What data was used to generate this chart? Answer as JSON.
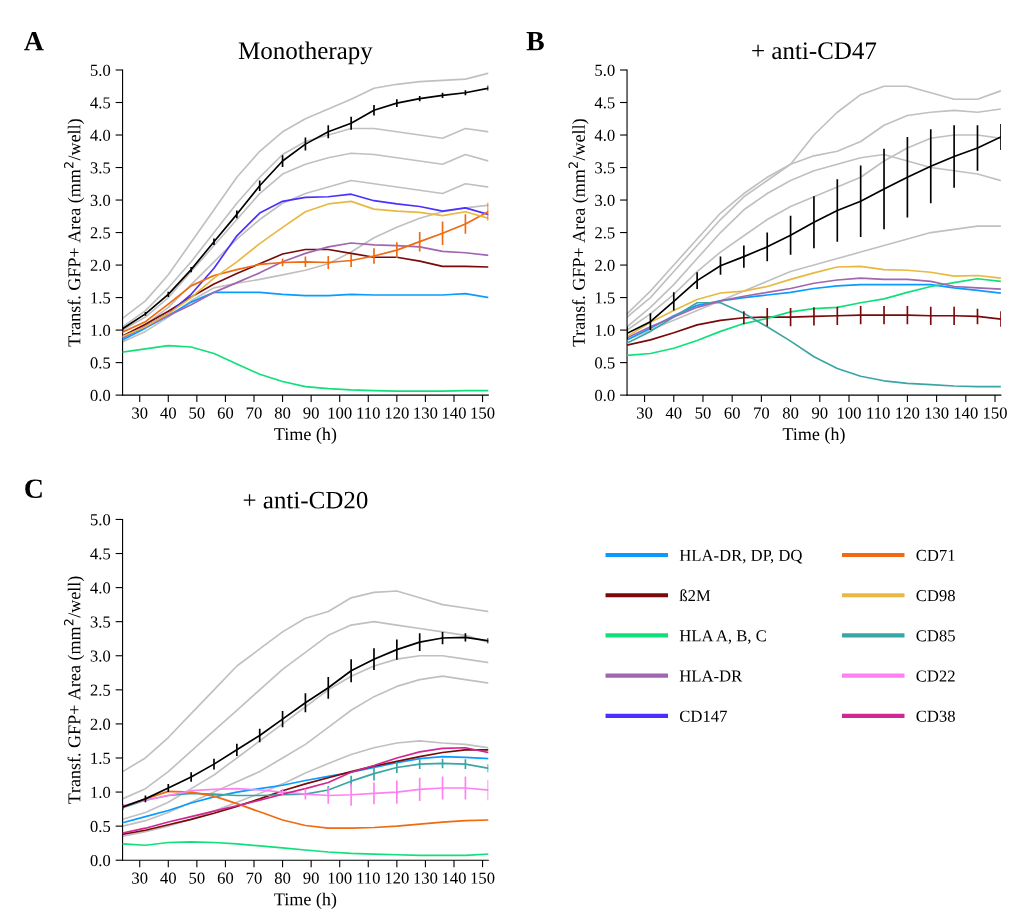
{
  "chart_data": [
    {
      "type": "line",
      "title": "Monotherapy",
      "xlabel": "Time (h)",
      "ylabel": "Transf. GFP+ Area (mm$^{2}$/well)",
      "annotations": [
        "A"
      ],
      "legend": "bottom right",
      "x": [
        24,
        32,
        40,
        48,
        56,
        64,
        72,
        80,
        88,
        96,
        104,
        112,
        120,
        128,
        136,
        144,
        152
      ],
      "xlim": [
        24,
        152
      ],
      "xticks": [
        30,
        40,
        50,
        60,
        70,
        80,
        90,
        100,
        110,
        120,
        130,
        140,
        150
      ],
      "ylim": [
        0,
        5
      ],
      "yticks": [
        {
          "value": 0,
          "label": "0.0"
        },
        {
          "value": 0.5,
          "label": "0.5"
        },
        {
          "value": 1,
          "label": "1.0"
        },
        {
          "value": 1.5,
          "label": "1.5"
        },
        {
          "value": 2,
          "label": "2.0"
        },
        {
          "value": 2.5,
          "label": "2.5"
        },
        {
          "value": 3,
          "label": "3.0"
        },
        {
          "value": 3.5,
          "label": "3.5"
        },
        {
          "value": 4,
          "label": "4.0"
        },
        {
          "value": 4.5,
          "label": "4.5"
        },
        {
          "value": 5,
          "label": "5.0"
        }
      ],
      "series": [
        {
          "color": "#c0c0c0",
          "values": [
            1.18,
            1.45,
            1.85,
            2.35,
            2.85,
            3.35,
            3.75,
            4.05,
            4.25,
            4.4,
            4.55,
            4.72,
            4.78,
            4.82,
            4.84,
            4.86,
            4.95
          ]
        },
        {
          "color": "#c0c0c0",
          "values": [
            1.05,
            1.3,
            1.65,
            2.05,
            2.5,
            2.95,
            3.35,
            3.7,
            3.9,
            4.0,
            4.1,
            4.1,
            4.05,
            4.0,
            3.95,
            4.1,
            4.05
          ]
        },
        {
          "color": "#c0c0c0",
          "values": [
            1.0,
            1.2,
            1.5,
            1.9,
            2.3,
            2.7,
            3.1,
            3.4,
            3.55,
            3.65,
            3.72,
            3.7,
            3.65,
            3.6,
            3.55,
            3.7,
            3.6
          ]
        },
        {
          "color": "#c0c0c0",
          "values": [
            0.9,
            1.08,
            1.35,
            1.7,
            2.05,
            2.4,
            2.7,
            2.95,
            3.1,
            3.2,
            3.3,
            3.25,
            3.2,
            3.15,
            3.1,
            3.25,
            3.2
          ]
        },
        {
          "color": "#c0c0c0",
          "values": [
            0.82,
            0.98,
            1.2,
            1.45,
            1.65,
            1.72,
            1.78,
            1.85,
            1.92,
            2.02,
            2.2,
            2.42,
            2.58,
            2.72,
            2.82,
            2.88,
            2.92
          ]
        },
        {
          "name": "HLA-DR, DP, DQ",
          "color": "#0a9bff",
          "values": [
            0.85,
            1.03,
            1.22,
            1.43,
            1.58,
            1.58,
            1.58,
            1.55,
            1.53,
            1.53,
            1.55,
            1.54,
            1.54,
            1.54,
            1.54,
            1.56,
            1.5
          ]
        },
        {
          "name": "ß2M",
          "color": "#7a0a0a",
          "values": [
            0.91,
            1.09,
            1.29,
            1.51,
            1.71,
            1.87,
            2.02,
            2.17,
            2.24,
            2.24,
            2.18,
            2.12,
            2.12,
            2.06,
            1.98,
            1.98,
            1.97
          ]
        },
        {
          "name": "HLA A, B, C",
          "color": "#10e07a",
          "values": [
            0.66,
            0.71,
            0.76,
            0.74,
            0.64,
            0.48,
            0.32,
            0.21,
            0.13,
            0.1,
            0.08,
            0.07,
            0.06,
            0.06,
            0.06,
            0.07,
            0.07
          ]
        },
        {
          "name": "HLA-DR",
          "color": "#a066b0",
          "values": [
            0.88,
            1.05,
            1.22,
            1.39,
            1.58,
            1.73,
            1.88,
            2.05,
            2.18,
            2.28,
            2.34,
            2.31,
            2.3,
            2.28,
            2.21,
            2.19,
            2.15
          ]
        },
        {
          "name": "CD147",
          "color": "#4a30ff",
          "values": [
            0.9,
            1.05,
            1.25,
            1.55,
            1.95,
            2.45,
            2.8,
            2.98,
            3.04,
            3.05,
            3.09,
            2.99,
            2.94,
            2.9,
            2.83,
            2.88,
            2.78
          ]
        },
        {
          "name": "CD71",
          "color": "#f06a10",
          "values": [
            0.97,
            1.13,
            1.4,
            1.68,
            1.84,
            1.93,
            2.01,
            2.04,
            2.05,
            2.04,
            2.07,
            2.14,
            2.23,
            2.36,
            2.49,
            2.63,
            2.82
          ],
          "errors": [
            null,
            null,
            null,
            null,
            null,
            null,
            null,
            0.06,
            0.08,
            0.1,
            0.1,
            0.12,
            0.12,
            0.15,
            0.18,
            0.15,
            0.14
          ]
        },
        {
          "name": "CD98",
          "color": "#e8b840",
          "values": [
            0.9,
            1.05,
            1.25,
            1.5,
            1.8,
            2.05,
            2.33,
            2.58,
            2.82,
            2.94,
            2.98,
            2.86,
            2.83,
            2.81,
            2.76,
            2.82,
            2.72
          ]
        },
        {
          "color": "#000000",
          "values": [
            1.02,
            1.25,
            1.55,
            1.93,
            2.36,
            2.78,
            3.22,
            3.6,
            3.86,
            4.05,
            4.18,
            4.38,
            4.49,
            4.56,
            4.61,
            4.65,
            4.72
          ],
          "errors": [
            0.03,
            0.03,
            0.04,
            0.04,
            0.05,
            0.06,
            0.08,
            0.09,
            0.1,
            0.1,
            0.1,
            0.08,
            0.06,
            0.04,
            0.04,
            0.04,
            0.04
          ]
        }
      ]
    },
    {
      "type": "line",
      "title": "+ anti-CD47",
      "xlabel": "Time (h)",
      "ylabel": "Transf. GFP+ Area (mm$^{2}$/well)",
      "annotations": [
        "B"
      ],
      "legend": "bottom right",
      "x": [
        24,
        32,
        40,
        48,
        56,
        64,
        72,
        80,
        88,
        96,
        104,
        112,
        120,
        128,
        136,
        144,
        152
      ],
      "xlim": [
        24,
        152
      ],
      "xticks": [
        30,
        40,
        50,
        60,
        70,
        80,
        90,
        100,
        110,
        120,
        130,
        140,
        150
      ],
      "ylim": [
        0,
        5
      ],
      "yticks": [
        {
          "value": 0,
          "label": "0.0"
        },
        {
          "value": 0.5,
          "label": "0.5"
        },
        {
          "value": 1,
          "label": "1.0"
        },
        {
          "value": 1.5,
          "label": "1.5"
        },
        {
          "value": 2,
          "label": "2.0"
        },
        {
          "value": 2.5,
          "label": "2.5"
        },
        {
          "value": 3,
          "label": "3.0"
        },
        {
          "value": 3.5,
          "label": "3.5"
        },
        {
          "value": 4,
          "label": "4.0"
        },
        {
          "value": 4.5,
          "label": "4.5"
        },
        {
          "value": 5,
          "label": "5.0"
        }
      ],
      "series": [
        {
          "color": "#c0c0c0",
          "values": [
            1.25,
            1.6,
            2.0,
            2.4,
            2.8,
            3.1,
            3.35,
            3.55,
            3.68,
            3.75,
            3.9,
            4.15,
            4.3,
            4.35,
            4.38,
            4.35,
            4.4
          ]
        },
        {
          "color": "#c0c0c0",
          "values": [
            1.2,
            1.5,
            1.9,
            2.3,
            2.7,
            3.05,
            3.3,
            3.55,
            4.0,
            4.35,
            4.62,
            4.75,
            4.75,
            4.65,
            4.55,
            4.55,
            4.68
          ]
        },
        {
          "color": "#c0c0c0",
          "values": [
            1.05,
            1.35,
            1.7,
            2.1,
            2.5,
            2.85,
            3.1,
            3.3,
            3.45,
            3.55,
            3.65,
            3.7,
            3.6,
            3.5,
            3.45,
            3.4,
            3.3
          ]
        },
        {
          "color": "#c0c0c0",
          "values": [
            1.0,
            1.25,
            1.55,
            1.9,
            2.2,
            2.45,
            2.7,
            2.9,
            3.05,
            3.2,
            3.35,
            3.6,
            3.8,
            3.95,
            4.0,
            4.0,
            3.95
          ]
        },
        {
          "color": "#c0c0c0",
          "values": [
            0.85,
            1.0,
            1.15,
            1.3,
            1.45,
            1.6,
            1.75,
            1.9,
            2.0,
            2.1,
            2.2,
            2.3,
            2.4,
            2.5,
            2.55,
            2.6,
            2.6
          ]
        },
        {
          "name": "HLA-DR, DP, DQ",
          "color": "#0a9bff",
          "values": [
            0.85,
            1.03,
            1.22,
            1.38,
            1.45,
            1.5,
            1.54,
            1.58,
            1.64,
            1.68,
            1.7,
            1.7,
            1.7,
            1.7,
            1.65,
            1.61,
            1.57
          ]
        },
        {
          "name": "ß2M",
          "color": "#7a0a0a",
          "values": [
            0.77,
            0.85,
            0.96,
            1.08,
            1.15,
            1.19,
            1.2,
            1.2,
            1.21,
            1.22,
            1.23,
            1.23,
            1.23,
            1.22,
            1.22,
            1.21,
            1.17
          ],
          "errors": [
            null,
            null,
            null,
            null,
            null,
            0.1,
            0.14,
            0.14,
            0.14,
            0.14,
            0.14,
            0.14,
            0.14,
            0.14,
            0.14,
            0.12,
            0.12
          ]
        },
        {
          "name": "HLA A, B, C",
          "color": "#10e07a",
          "values": [
            0.61,
            0.64,
            0.72,
            0.84,
            0.98,
            1.1,
            1.18,
            1.28,
            1.33,
            1.35,
            1.42,
            1.48,
            1.58,
            1.67,
            1.73,
            1.79,
            1.75
          ]
        },
        {
          "name": "CD85",
          "color": "#3aa5a5",
          "values": [
            0.8,
            0.98,
            1.2,
            1.42,
            1.42,
            1.26,
            1.05,
            0.83,
            0.59,
            0.41,
            0.29,
            0.22,
            0.18,
            0.16,
            0.14,
            0.13,
            0.13
          ]
        },
        {
          "name": "HLA-DR",
          "color": "#a066b0",
          "values": [
            0.88,
            1.05,
            1.2,
            1.35,
            1.45,
            1.52,
            1.58,
            1.64,
            1.72,
            1.77,
            1.8,
            1.78,
            1.78,
            1.75,
            1.67,
            1.65,
            1.63
          ]
        },
        {
          "name": "CD98",
          "color": "#e8b840",
          "values": [
            0.9,
            1.12,
            1.3,
            1.47,
            1.57,
            1.6,
            1.67,
            1.78,
            1.88,
            1.97,
            1.98,
            1.93,
            1.92,
            1.89,
            1.83,
            1.84,
            1.8
          ]
        },
        {
          "color": "#000000",
          "values": [
            0.95,
            1.13,
            1.44,
            1.76,
            1.99,
            2.13,
            2.28,
            2.46,
            2.66,
            2.84,
            2.98,
            3.17,
            3.35,
            3.52,
            3.67,
            3.8,
            3.97
          ],
          "errors": [
            0.1,
            0.13,
            0.14,
            0.13,
            0.14,
            0.17,
            0.22,
            0.3,
            0.4,
            0.48,
            0.55,
            0.62,
            0.62,
            0.57,
            0.48,
            0.35,
            0.2
          ]
        }
      ]
    },
    {
      "type": "line",
      "title": "+ anti-CD20",
      "xlabel": "Time (h)",
      "ylabel": "Transf. GFP+ Area (mm$^{2}$/well)",
      "annotations": [
        "C"
      ],
      "legend": "right",
      "x": [
        24,
        32,
        40,
        48,
        56,
        64,
        72,
        80,
        88,
        96,
        104,
        112,
        120,
        128,
        136,
        144,
        152
      ],
      "xlim": [
        24,
        152
      ],
      "xticks": [
        30,
        40,
        50,
        60,
        70,
        80,
        90,
        100,
        110,
        120,
        130,
        140,
        150
      ],
      "ylim": [
        0,
        5
      ],
      "yticks": [
        {
          "value": 0,
          "label": "0.0"
        },
        {
          "value": 0.5,
          "label": "0.5"
        },
        {
          "value": 1,
          "label": "1.0"
        },
        {
          "value": 1.5,
          "label": "1.5"
        },
        {
          "value": 2,
          "label": "2.0"
        },
        {
          "value": 2.5,
          "label": "2.5"
        },
        {
          "value": 3,
          "label": "3.0"
        },
        {
          "value": 3.5,
          "label": "3.5"
        },
        {
          "value": 4,
          "label": "4.0"
        },
        {
          "value": 4.5,
          "label": "4.5"
        },
        {
          "value": 5,
          "label": "5.0"
        }
      ],
      "series": [
        {
          "color": "#c0c0c0",
          "values": [
            1.3,
            1.5,
            1.8,
            2.15,
            2.5,
            2.85,
            3.1,
            3.35,
            3.55,
            3.65,
            3.85,
            3.93,
            3.95,
            3.85,
            3.75,
            3.7,
            3.65
          ]
        },
        {
          "color": "#c0c0c0",
          "values": [
            0.9,
            1.05,
            1.3,
            1.6,
            1.9,
            2.2,
            2.5,
            2.8,
            3.05,
            3.3,
            3.45,
            3.5,
            3.45,
            3.4,
            3.35,
            3.3,
            3.2
          ]
        },
        {
          "color": "#c0c0c0",
          "values": [
            0.6,
            0.7,
            0.85,
            1.05,
            1.25,
            1.5,
            1.75,
            2.0,
            2.25,
            2.5,
            2.7,
            2.85,
            2.95,
            3.0,
            3.0,
            2.95,
            2.9
          ]
        },
        {
          "color": "#c0c0c0",
          "values": [
            0.5,
            0.58,
            0.7,
            0.85,
            1.0,
            1.15,
            1.3,
            1.5,
            1.7,
            1.95,
            2.2,
            2.4,
            2.55,
            2.65,
            2.7,
            2.65,
            2.6
          ]
        },
        {
          "color": "#c0c0c0",
          "values": [
            0.35,
            0.42,
            0.5,
            0.6,
            0.72,
            0.85,
            0.98,
            1.12,
            1.28,
            1.42,
            1.55,
            1.65,
            1.72,
            1.75,
            1.72,
            1.7,
            1.65
          ]
        },
        {
          "name": "HLA-DR, DP, DQ",
          "color": "#0a9bff",
          "values": [
            0.55,
            0.64,
            0.73,
            0.84,
            0.93,
            1.0,
            1.05,
            1.1,
            1.17,
            1.23,
            1.29,
            1.36,
            1.43,
            1.49,
            1.52,
            1.51,
            1.49
          ]
        },
        {
          "name": "ß2M",
          "color": "#7a0a0a",
          "values": [
            0.38,
            0.44,
            0.52,
            0.6,
            0.69,
            0.79,
            0.9,
            1.02,
            1.12,
            1.21,
            1.3,
            1.38,
            1.45,
            1.52,
            1.58,
            1.62,
            1.62
          ]
        },
        {
          "name": "HLA A, B, C",
          "color": "#10e07a",
          "values": [
            0.24,
            0.22,
            0.26,
            0.27,
            0.26,
            0.24,
            0.21,
            0.18,
            0.15,
            0.12,
            0.1,
            0.09,
            0.08,
            0.07,
            0.07,
            0.07,
            0.09
          ]
        },
        {
          "name": "CD85",
          "color": "#3aa5a5",
          "values": [
            0.77,
            0.88,
            0.95,
            0.98,
            0.97,
            0.95,
            0.95,
            0.96,
            0.97,
            1.03,
            1.16,
            1.27,
            1.36,
            1.41,
            1.42,
            1.41,
            1.35
          ],
          "errors": [
            null,
            null,
            null,
            null,
            null,
            null,
            null,
            null,
            null,
            0.06,
            0.08,
            0.1,
            0.08,
            0.07,
            0.07,
            0.07,
            0.06
          ]
        },
        {
          "name": "CD71",
          "color": "#f06a10",
          "values": [
            0.78,
            0.9,
            1.01,
            1.0,
            0.94,
            0.83,
            0.71,
            0.59,
            0.51,
            0.47,
            0.47,
            0.48,
            0.5,
            0.53,
            0.56,
            0.58,
            0.59
          ]
        },
        {
          "name": "CD22",
          "color": "#ff80f0",
          "values": [
            0.8,
            0.88,
            0.95,
            1.02,
            1.04,
            1.05,
            1.03,
            1.0,
            0.97,
            0.95,
            0.96,
            0.98,
            1.0,
            1.04,
            1.06,
            1.06,
            1.03
          ],
          "errors": [
            null,
            null,
            null,
            null,
            null,
            null,
            null,
            0.05,
            0.08,
            0.12,
            0.16,
            0.16,
            0.17,
            0.17,
            0.17,
            0.17,
            0.15
          ]
        },
        {
          "name": "CD38",
          "color": "#d02890",
          "values": [
            0.4,
            0.47,
            0.56,
            0.64,
            0.72,
            0.8,
            0.88,
            0.97,
            1.05,
            1.14,
            1.29,
            1.39,
            1.5,
            1.59,
            1.64,
            1.65,
            1.58
          ]
        },
        {
          "color": "#000000",
          "values": [
            0.78,
            0.9,
            1.06,
            1.22,
            1.41,
            1.62,
            1.83,
            2.07,
            2.31,
            2.53,
            2.78,
            2.95,
            3.09,
            3.2,
            3.26,
            3.27,
            3.22
          ],
          "errors": [
            0.04,
            0.05,
            0.06,
            0.07,
            0.08,
            0.09,
            0.1,
            0.12,
            0.14,
            0.16,
            0.17,
            0.16,
            0.15,
            0.13,
            0.09,
            0.06,
            0.04
          ]
        }
      ]
    }
  ]
}
